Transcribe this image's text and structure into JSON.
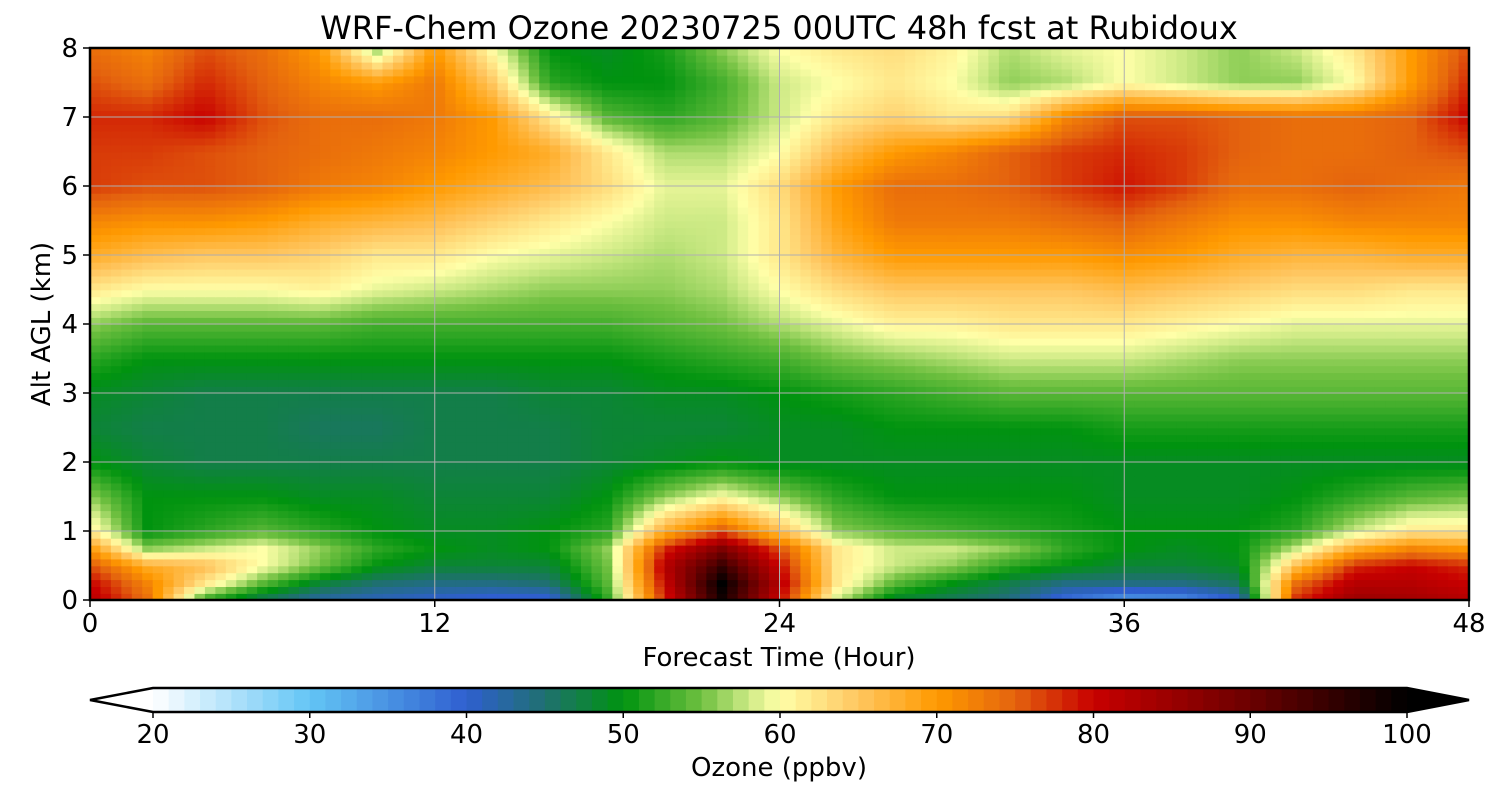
{
  "chart_data": {
    "type": "heatmap",
    "title": "WRF-Chem Ozone  20230725 00UTC 48h fcst at Rubidoux",
    "xlabel": "Forecast Time (Hour)",
    "ylabel": "Alt AGL (km)",
    "xlim": [
      0,
      48
    ],
    "ylim": [
      0,
      8
    ],
    "x_ticks": [
      0,
      12,
      24,
      36,
      48
    ],
    "y_ticks": [
      0,
      1,
      2,
      3,
      4,
      5,
      6,
      7,
      8
    ],
    "grid": true,
    "x": [
      0,
      2,
      4,
      6,
      8,
      10,
      12,
      14,
      16,
      18,
      20,
      22,
      24,
      26,
      28,
      30,
      32,
      34,
      36,
      38,
      40,
      42,
      44,
      46,
      48
    ],
    "y": [
      0,
      0.25,
      0.5,
      0.75,
      1,
      1.5,
      2,
      2.5,
      3,
      3.5,
      4,
      4.5,
      5,
      5.5,
      6,
      6.5,
      7,
      7.5,
      8
    ],
    "z": [
      [
        82,
        74,
        52,
        46,
        42,
        41,
        40,
        39,
        39,
        52,
        78,
        98,
        80,
        58,
        48,
        46,
        44,
        38,
        34,
        35,
        40,
        78,
        85,
        84,
        82
      ],
      [
        80,
        72,
        62,
        54,
        48,
        45,
        44,
        44,
        45,
        54,
        80,
        100,
        82,
        62,
        54,
        50,
        47,
        44,
        44,
        44,
        46,
        74,
        82,
        82,
        80
      ],
      [
        76,
        68,
        66,
        60,
        55,
        50,
        48,
        48,
        48,
        55,
        82,
        95,
        80,
        62,
        58,
        56,
        52,
        50,
        48,
        48,
        49,
        66,
        78,
        80,
        78
      ],
      [
        70,
        56,
        58,
        60,
        56,
        52,
        50,
        49,
        50,
        56,
        78,
        88,
        76,
        62,
        58,
        58,
        56,
        52,
        50,
        49,
        50,
        58,
        68,
        72,
        70
      ],
      [
        62,
        50,
        52,
        54,
        52,
        50,
        49,
        49,
        50,
        52,
        68,
        76,
        66,
        56,
        54,
        53,
        52,
        51,
        50,
        50,
        50,
        52,
        58,
        62,
        62
      ],
      [
        56,
        50,
        50,
        50,
        49,
        49,
        48,
        48,
        48,
        50,
        56,
        60,
        56,
        52,
        50,
        50,
        50,
        50,
        49,
        49,
        49,
        50,
        52,
        54,
        55
      ],
      [
        50,
        48,
        47,
        47,
        47,
        47,
        47,
        47,
        47,
        48,
        49,
        50,
        49,
        49,
        49,
        49,
        49,
        49,
        49,
        49,
        49,
        49,
        49,
        49,
        49
      ],
      [
        48,
        47,
        47,
        47,
        46,
        46,
        47,
        47,
        47,
        48,
        48,
        48,
        49,
        49,
        50,
        50,
        50,
        50,
        51,
        51,
        51,
        51,
        51,
        51,
        51
      ],
      [
        49,
        48,
        47,
        47,
        47,
        47,
        47,
        47,
        48,
        48,
        49,
        49,
        50,
        51,
        52,
        53,
        54,
        54,
        54,
        54,
        54,
        54,
        54,
        54,
        54
      ],
      [
        52,
        50,
        50,
        50,
        50,
        50,
        50,
        50,
        50,
        50,
        51,
        52,
        53,
        55,
        56,
        57,
        58,
        58,
        58,
        57,
        56,
        56,
        56,
        56,
        56
      ],
      [
        56,
        54,
        54,
        54,
        54,
        53,
        53,
        53,
        53,
        53,
        54,
        55,
        57,
        59,
        61,
        61,
        62,
        62,
        62,
        61,
        60,
        59,
        59,
        59,
        59
      ],
      [
        62,
        60,
        60,
        60,
        61,
        59,
        58,
        57,
        56,
        56,
        56,
        57,
        60,
        63,
        65,
        65,
        65,
        65,
        66,
        65,
        64,
        63,
        63,
        62,
        62
      ],
      [
        68,
        66,
        65,
        65,
        64,
        62,
        62,
        60,
        59,
        58,
        57,
        58,
        62,
        67,
        70,
        70,
        70,
        70,
        71,
        70,
        68,
        67,
        67,
        68,
        68
      ],
      [
        72,
        71,
        71,
        70,
        68,
        67,
        66,
        64,
        62,
        60,
        58,
        58,
        62,
        69,
        73,
        73,
        73,
        74,
        75,
        73,
        71,
        71,
        72,
        72,
        72
      ],
      [
        77,
        76,
        76,
        75,
        73,
        72,
        70,
        68,
        66,
        63,
        59,
        59,
        63,
        70,
        74,
        74,
        75,
        77,
        79,
        77,
        74,
        74,
        75,
        74,
        73
      ],
      [
        77,
        77,
        76,
        75,
        74,
        73,
        72,
        70,
        68,
        62,
        57,
        57,
        60,
        66,
        70,
        72,
        75,
        77,
        78,
        77,
        75,
        74,
        74,
        75,
        76
      ],
      [
        78,
        78,
        80,
        76,
        74,
        74,
        73,
        70,
        62,
        54,
        52,
        54,
        58,
        62,
        64,
        62,
        63,
        72,
        76,
        76,
        75,
        74,
        74,
        75,
        80
      ],
      [
        76,
        74,
        78,
        75,
        72,
        70,
        73,
        65,
        52,
        50,
        50,
        53,
        58,
        60,
        62,
        60,
        56,
        57,
        60,
        58,
        56,
        56,
        60,
        70,
        78
      ],
      [
        74,
        72,
        76,
        74,
        70,
        56,
        70,
        60,
        50,
        49,
        51,
        56,
        60,
        62,
        63,
        61,
        57,
        59,
        60,
        58,
        56,
        58,
        62,
        70,
        76
      ]
    ],
    "colorbar": {
      "label": "Ozone  (ppbv)",
      "min": 20,
      "max": 100,
      "ticks": [
        20,
        30,
        40,
        50,
        60,
        70,
        80,
        90,
        100
      ],
      "extend": "both",
      "stops": [
        {
          "v": 20,
          "color": "#ffffff"
        },
        {
          "v": 30,
          "color": "#63c5f5"
        },
        {
          "v": 40,
          "color": "#2f5fd0"
        },
        {
          "v": 45,
          "color": "#1f7070"
        },
        {
          "v": 50,
          "color": "#00930f"
        },
        {
          "v": 55,
          "color": "#6fc040"
        },
        {
          "v": 58,
          "color": "#cdea85"
        },
        {
          "v": 60,
          "color": "#ffffa8"
        },
        {
          "v": 65,
          "color": "#ffc660"
        },
        {
          "v": 70,
          "color": "#ff9a00"
        },
        {
          "v": 75,
          "color": "#e4630e"
        },
        {
          "v": 80,
          "color": "#c80000"
        },
        {
          "v": 90,
          "color": "#6b0000"
        },
        {
          "v": 100,
          "color": "#000000"
        }
      ]
    }
  }
}
